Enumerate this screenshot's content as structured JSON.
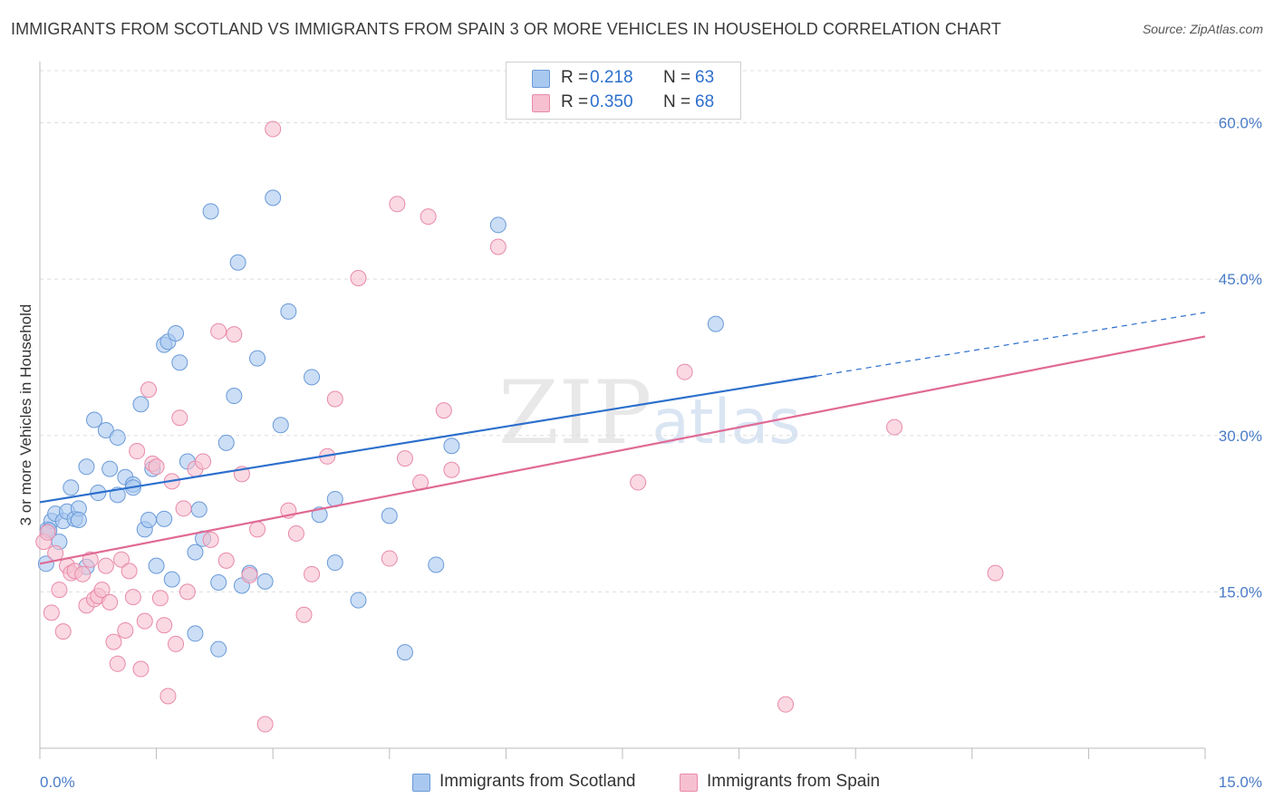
{
  "title": "IMMIGRANTS FROM SCOTLAND VS IMMIGRANTS FROM SPAIN 3 OR MORE VEHICLES IN HOUSEHOLD CORRELATION CHART",
  "source": "Source: ZipAtlas.com",
  "watermark": {
    "zip": "ZIP",
    "atlas": "atlas"
  },
  "legend": {
    "scotland": {
      "r_label": "R =",
      "r_value": "0.218",
      "n_label": "N =",
      "n_value": "63"
    },
    "spain": {
      "r_label": "R =",
      "r_value": "0.350",
      "n_label": "N =",
      "n_value": "68"
    }
  },
  "colors": {
    "scotland_fill": "#a9c8f0",
    "scotland_stroke": "#6a9ad8",
    "scotland_line": "#2c6fcc",
    "spain_fill": "#f6c0d1",
    "spain_stroke": "#e88aa9",
    "spain_line": "#e06a95",
    "tick_text": "#4a7cc7",
    "grid": "#dddddd"
  },
  "chart_data": {
    "type": "scatter",
    "title": "IMMIGRANTS FROM SCOTLAND VS IMMIGRANTS FROM SPAIN 3 OR MORE VEHICLES IN HOUSEHOLD CORRELATION CHART",
    "xlabel": "",
    "ylabel": "3 or more Vehicles in Household",
    "xlim": [
      0,
      15
    ],
    "ylim": [
      0,
      65
    ],
    "x_tick_labels": [
      "0.0%",
      "15.0%"
    ],
    "y_ticks": [
      15,
      30,
      45,
      60
    ],
    "y_tick_labels": [
      "15.0%",
      "30.0%",
      "45.0%",
      "60.0%"
    ],
    "grid": "horizontal dashed",
    "legend_placement": "top-center",
    "series": [
      {
        "name": "Immigrants from Scotland",
        "r": 0.218,
        "n": 63,
        "trend": {
          "x_start": 0,
          "y_start": 23.6,
          "x_end": 10.0,
          "y_end": 35.7,
          "dashed_to_x": 15.0,
          "dashed_to_y": 41.8
        },
        "points": [
          [
            0.1,
            21.0
          ],
          [
            0.15,
            21.8
          ],
          [
            0.2,
            22.5
          ],
          [
            0.3,
            21.8
          ],
          [
            0.35,
            22.7
          ],
          [
            0.4,
            25.0
          ],
          [
            0.45,
            22.0
          ],
          [
            0.5,
            23.0
          ],
          [
            0.6,
            27.0
          ],
          [
            0.7,
            31.5
          ],
          [
            0.75,
            24.5
          ],
          [
            0.85,
            30.5
          ],
          [
            0.9,
            26.8
          ],
          [
            1.0,
            29.8
          ],
          [
            1.1,
            26.0
          ],
          [
            1.2,
            25.3
          ],
          [
            1.3,
            33.0
          ],
          [
            1.35,
            21.0
          ],
          [
            1.4,
            21.9
          ],
          [
            1.45,
            26.8
          ],
          [
            1.6,
            38.7
          ],
          [
            1.65,
            39.0
          ],
          [
            1.75,
            39.8
          ],
          [
            1.8,
            37.0
          ],
          [
            1.9,
            27.5
          ],
          [
            2.0,
            18.8
          ],
          [
            2.05,
            22.9
          ],
          [
            2.1,
            20.1
          ],
          [
            2.2,
            51.5
          ],
          [
            2.3,
            15.9
          ],
          [
            2.4,
            29.3
          ],
          [
            2.5,
            33.8
          ],
          [
            2.55,
            46.6
          ],
          [
            2.6,
            15.6
          ],
          [
            2.7,
            16.8
          ],
          [
            2.8,
            37.4
          ],
          [
            2.9,
            16.0
          ],
          [
            3.0,
            52.8
          ],
          [
            3.1,
            31.0
          ],
          [
            3.2,
            41.9
          ],
          [
            3.5,
            35.6
          ],
          [
            3.6,
            22.4
          ],
          [
            3.8,
            23.9
          ],
          [
            4.1,
            14.2
          ],
          [
            4.5,
            22.3
          ],
          [
            4.7,
            9.2
          ],
          [
            5.1,
            17.6
          ],
          [
            5.3,
            29.0
          ],
          [
            5.9,
            50.2
          ],
          [
            8.7,
            40.7
          ],
          [
            0.12,
            20.9
          ],
          [
            0.25,
            19.8
          ],
          [
            0.6,
            17.4
          ],
          [
            1.0,
            24.3
          ],
          [
            1.5,
            17.5
          ],
          [
            1.7,
            16.2
          ],
          [
            2.3,
            9.5
          ],
          [
            3.8,
            17.8
          ],
          [
            0.08,
            17.7
          ],
          [
            1.2,
            25.0
          ],
          [
            0.5,
            21.9
          ],
          [
            1.6,
            22.0
          ],
          [
            2.0,
            11.0
          ]
        ]
      },
      {
        "name": "Immigrants from Spain",
        "r": 0.35,
        "n": 68,
        "trend": {
          "x_start": 0,
          "y_start": 17.7,
          "x_end": 15.0,
          "y_end": 39.5
        },
        "points": [
          [
            0.05,
            19.8
          ],
          [
            0.1,
            20.7
          ],
          [
            0.15,
            13.0
          ],
          [
            0.2,
            18.7
          ],
          [
            0.25,
            15.2
          ],
          [
            0.3,
            11.2
          ],
          [
            0.35,
            17.5
          ],
          [
            0.4,
            16.8
          ],
          [
            0.45,
            17.0
          ],
          [
            0.55,
            16.7
          ],
          [
            0.6,
            13.7
          ],
          [
            0.65,
            18.1
          ],
          [
            0.7,
            14.3
          ],
          [
            0.75,
            14.6
          ],
          [
            0.8,
            15.2
          ],
          [
            0.85,
            17.5
          ],
          [
            0.9,
            14.0
          ],
          [
            0.95,
            10.2
          ],
          [
            1.0,
            8.1
          ],
          [
            1.05,
            18.1
          ],
          [
            1.1,
            11.3
          ],
          [
            1.15,
            17.0
          ],
          [
            1.2,
            14.5
          ],
          [
            1.25,
            28.5
          ],
          [
            1.3,
            7.6
          ],
          [
            1.35,
            12.2
          ],
          [
            1.4,
            34.4
          ],
          [
            1.45,
            27.3
          ],
          [
            1.5,
            27.0
          ],
          [
            1.55,
            14.4
          ],
          [
            1.6,
            11.8
          ],
          [
            1.65,
            5.0
          ],
          [
            1.7,
            25.6
          ],
          [
            1.75,
            10.0
          ],
          [
            1.8,
            31.7
          ],
          [
            1.85,
            23.0
          ],
          [
            1.9,
            15.0
          ],
          [
            2.0,
            26.8
          ],
          [
            2.1,
            27.5
          ],
          [
            2.2,
            20.0
          ],
          [
            2.3,
            40.0
          ],
          [
            2.4,
            18.0
          ],
          [
            2.5,
            39.7
          ],
          [
            2.6,
            26.3
          ],
          [
            2.7,
            16.6
          ],
          [
            2.8,
            21.0
          ],
          [
            2.9,
            2.3
          ],
          [
            3.0,
            59.4
          ],
          [
            3.2,
            22.8
          ],
          [
            3.3,
            20.6
          ],
          [
            3.4,
            12.8
          ],
          [
            3.5,
            16.7
          ],
          [
            3.7,
            28.0
          ],
          [
            3.8,
            33.5
          ],
          [
            4.1,
            45.1
          ],
          [
            4.5,
            18.2
          ],
          [
            4.6,
            52.2
          ],
          [
            4.7,
            27.8
          ],
          [
            4.9,
            25.5
          ],
          [
            5.0,
            51.0
          ],
          [
            5.2,
            32.4
          ],
          [
            5.3,
            26.7
          ],
          [
            5.9,
            48.1
          ],
          [
            7.7,
            25.5
          ],
          [
            8.3,
            36.1
          ],
          [
            9.6,
            4.2
          ],
          [
            11.0,
            30.8
          ],
          [
            12.3,
            16.8
          ]
        ]
      }
    ]
  }
}
